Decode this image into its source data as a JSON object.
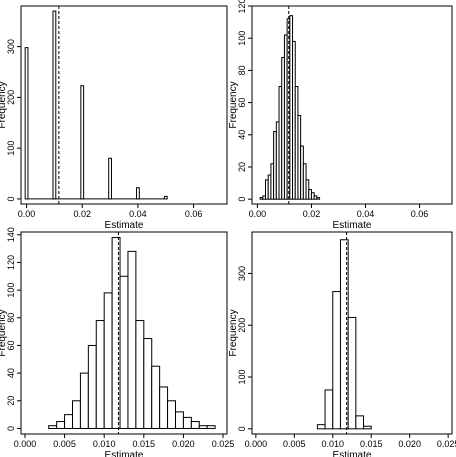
{
  "chart_data": [
    {
      "type": "bar",
      "xlabel": "Estimate",
      "ylabel": "Frequency",
      "xlim": [
        -0.002,
        0.072
      ],
      "ylim": [
        -10,
        380
      ],
      "xticks": [
        "0.00",
        "0.02",
        "0.04",
        "0.06"
      ],
      "xtick_values": [
        0,
        0.02,
        0.04,
        0.06
      ],
      "yticks": [
        "0",
        "100",
        "200",
        "300"
      ],
      "ytick_values": [
        0,
        100,
        200,
        300
      ],
      "bin_width": 0.001,
      "x": [
        0.0,
        0.01,
        0.02,
        0.03,
        0.04,
        0.05
      ],
      "values": [
        298,
        370,
        223,
        80,
        22,
        5
      ],
      "reference_line": 0.0116,
      "baseline_from": 0.0,
      "baseline_to": 0.05
    },
    {
      "type": "bar",
      "xlabel": "Estimate",
      "ylabel": "Frequency",
      "xlim": [
        -0.002,
        0.072
      ],
      "ylim": [
        -3,
        120
      ],
      "xticks": [
        "0.00",
        "0.02",
        "0.04",
        "0.06"
      ],
      "xtick_values": [
        0,
        0.02,
        0.04,
        0.06
      ],
      "yticks": [
        "0",
        "20",
        "40",
        "60",
        "80",
        "100",
        "120"
      ],
      "ytick_values": [
        0,
        20,
        40,
        60,
        80,
        100,
        120
      ],
      "bin_width": 0.001,
      "x": [
        0.0015,
        0.0025,
        0.0035,
        0.0045,
        0.0055,
        0.0065,
        0.0075,
        0.0085,
        0.0095,
        0.0105,
        0.0115,
        0.0125,
        0.0135,
        0.0145,
        0.0155,
        0.0165,
        0.0175,
        0.0185,
        0.0195,
        0.0205,
        0.0215,
        0.0225,
        0.0235
      ],
      "values": [
        1,
        2,
        12,
        15,
        22,
        42,
        48,
        70,
        88,
        102,
        112,
        114,
        98,
        70,
        52,
        33,
        22,
        12,
        6,
        4,
        2,
        1,
        0
      ],
      "reference_line": 0.0116
    },
    {
      "type": "bar",
      "xlabel": "Estimate",
      "ylabel": "Frequency",
      "xlim": [
        -0.0005,
        0.0255
      ],
      "ylim": [
        -4,
        142
      ],
      "xticks": [
        "0.000",
        "0.005",
        "0.010",
        "0.015",
        "0.020",
        "0.025"
      ],
      "xtick_values": [
        0,
        0.005,
        0.01,
        0.015,
        0.02,
        0.025
      ],
      "yticks": [
        "0",
        "20",
        "40",
        "60",
        "80",
        "100",
        "120",
        "140"
      ],
      "ytick_values": [
        0,
        20,
        40,
        60,
        80,
        100,
        120,
        140
      ],
      "bin_width": 0.001,
      "x": [
        0.0035,
        0.0045,
        0.0055,
        0.0065,
        0.0075,
        0.0085,
        0.0095,
        0.0105,
        0.0115,
        0.0125,
        0.0135,
        0.0145,
        0.0155,
        0.0165,
        0.0175,
        0.0185,
        0.0195,
        0.0205,
        0.0215,
        0.0225,
        0.0235
      ],
      "values": [
        2,
        5,
        10,
        20,
        40,
        60,
        78,
        98,
        138,
        110,
        128,
        78,
        65,
        45,
        30,
        20,
        12,
        8,
        5,
        2,
        2
      ],
      "reference_line": 0.0118
    },
    {
      "type": "bar",
      "xlabel": "Estimate",
      "ylabel": "Frequency",
      "xlim": [
        -0.0005,
        0.0255
      ],
      "ylim": [
        -10,
        380
      ],
      "xticks": [
        "0.000",
        "0.005",
        "0.010",
        "0.015",
        "0.020",
        "0.025"
      ],
      "xtick_values": [
        0,
        0.005,
        0.01,
        0.015,
        0.02,
        0.025
      ],
      "yticks": [
        "0",
        "100",
        "200",
        "300"
      ],
      "ytick_values": [
        0,
        100,
        200,
        300
      ],
      "bin_width": 0.001,
      "x": [
        0.0085,
        0.0095,
        0.0105,
        0.0115,
        0.0125,
        0.0135,
        0.0145
      ],
      "values": [
        8,
        75,
        265,
        365,
        215,
        25,
        5
      ],
      "reference_line": 0.0118
    }
  ]
}
